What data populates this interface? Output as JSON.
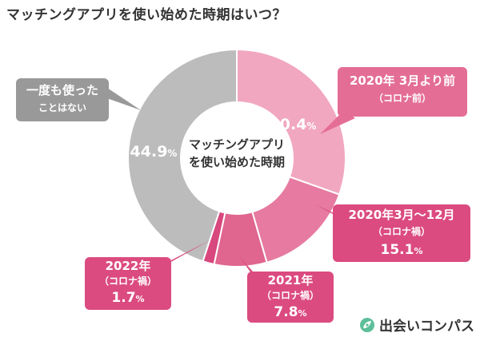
{
  "title": "マッチングアプリを使い始めた時期はいつ？",
  "center_label": [
    "マッチングアプリ",
    "を使い始めた時期"
  ],
  "chart_data": {
    "type": "pie",
    "title": "マッチングアプリを使い始めた時期はいつ？",
    "slices": [
      {
        "label": [
          "2020年 3月より前",
          "（コロナ前）"
        ],
        "value": 30.4,
        "color": "#f1a7bf"
      },
      {
        "label": [
          "2020年3月〜12月",
          "（コロナ禍）"
        ],
        "value": 15.1,
        "color": "#e67aa0"
      },
      {
        "label": [
          "2021年",
          "（コロナ禍）"
        ],
        "value": 7.8,
        "color": "#e0658f"
      },
      {
        "label": [
          "2022年",
          "（コロナ禍）"
        ],
        "value": 1.7,
        "color": "#d8477d"
      },
      {
        "label": [
          "一度も使った",
          "ことはない"
        ],
        "value": 44.9,
        "color": "#bcbcbc"
      }
    ],
    "value_suffix": "%"
  },
  "brand": {
    "name": "出会いコンパス",
    "icon": "compass-leaf-icon",
    "color": "#5cbf9a"
  }
}
